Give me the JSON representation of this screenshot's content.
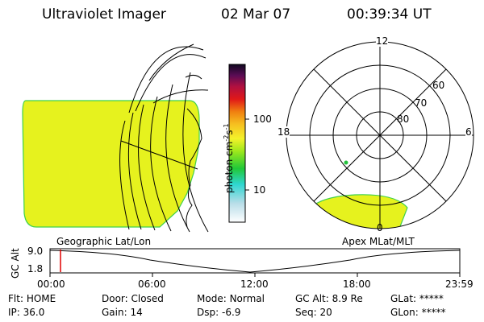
{
  "header": {
    "title": "Ultraviolet Imager",
    "date": "02 Mar 07",
    "time": "00:39:34 UT"
  },
  "left_panel": {
    "caption": "Geographic Lat/Lon"
  },
  "right_panel": {
    "caption": "Apex MLat/MLT",
    "mlt_labels": {
      "top": "12",
      "left": "18",
      "right": "6",
      "bottom": "0"
    },
    "lat_labels": [
      "60",
      "70",
      "80"
    ]
  },
  "colorbar": {
    "unit": "photon cm",
    "exp1": "-2",
    "s": "s",
    "exp2": "-1",
    "ticks": [
      "100",
      "10"
    ]
  },
  "altitude_plot": {
    "axis_title": "GC Alt",
    "y_ticks": [
      "9.0",
      "1.8"
    ],
    "x_ticks": [
      "00:00",
      "06:00",
      "12:00",
      "18:00",
      "23:59"
    ],
    "current_marker_color": "#e00000"
  },
  "status": {
    "flt": {
      "label": "Flt:",
      "value": "HOME"
    },
    "ip": {
      "label": "IP:",
      "value": "36.0"
    },
    "door": {
      "label": "Door:",
      "value": "Closed"
    },
    "gain": {
      "label": "Gain:",
      "value": "14"
    },
    "mode": {
      "label": "Mode:",
      "value": "Normal"
    },
    "dsp": {
      "label": "Dsp:",
      "value": "-6.9"
    },
    "gcalt": {
      "label": "GC Alt:",
      "value": "8.9 Re"
    },
    "seq": {
      "label": "Seq:",
      "value": "20"
    },
    "glat": {
      "label": "GLat:",
      "value": "*****"
    },
    "glon": {
      "label": "GLon:",
      "value": "*****"
    }
  },
  "colors": {
    "fill": "#e6f21e",
    "edge": "#3fd14a",
    "spot": "#22c13a"
  }
}
